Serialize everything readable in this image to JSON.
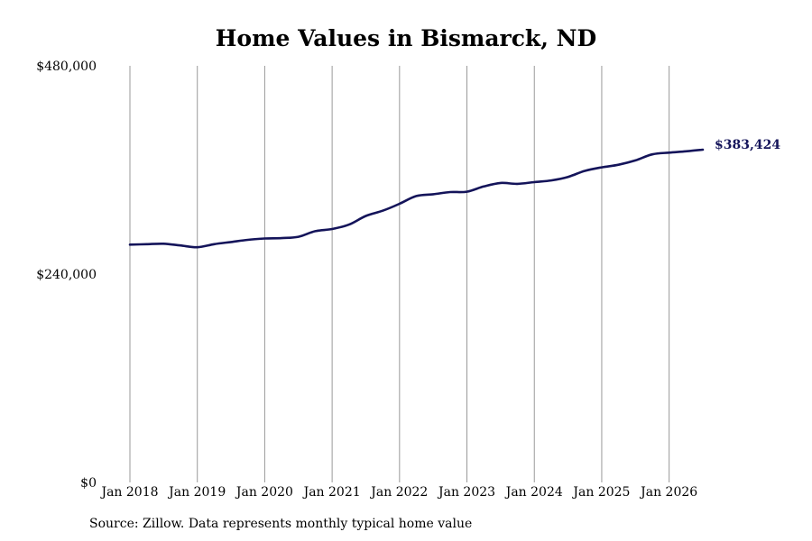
{
  "chart_data": {
    "type": "line",
    "title": "Home Values in Bismarck, ND",
    "source_note": "Source: Zillow. Data represents monthly typical home value",
    "xlabel": "",
    "ylabel": "",
    "ylim": [
      0,
      480000
    ],
    "y_ticks": [
      {
        "value": 0,
        "label": "$0"
      },
      {
        "value": 240000,
        "label": "$240,000"
      },
      {
        "value": 480000,
        "label": "$480,000"
      }
    ],
    "x_ticks": [
      {
        "value": 2018,
        "label": "Jan 2018"
      },
      {
        "value": 2019,
        "label": "Jan 2019"
      },
      {
        "value": 2020,
        "label": "Jan 2020"
      },
      {
        "value": 2021,
        "label": "Jan 2021"
      },
      {
        "value": 2022,
        "label": "Jan 2022"
      },
      {
        "value": 2023,
        "label": "Jan 2023"
      },
      {
        "value": 2024,
        "label": "Jan 2024"
      },
      {
        "value": 2025,
        "label": "Jan 2025"
      },
      {
        "value": 2026,
        "label": "Jan 2026"
      }
    ],
    "xlim": [
      2018,
      2026.5
    ],
    "grid": "vertical",
    "line_color": "#14145a",
    "grid_color": "#999999",
    "end_label": "$383,424",
    "series": [
      {
        "x": [
          2018.0,
          2018.25,
          2018.5,
          2018.75,
          2019.0,
          2019.25,
          2019.5,
          2019.75,
          2020.0,
          2020.25,
          2020.5,
          2020.75,
          2021.0,
          2021.25,
          2021.5,
          2021.75,
          2022.0,
          2022.25,
          2022.5,
          2022.75,
          2023.0,
          2023.25,
          2023.5,
          2023.75,
          2024.0,
          2024.25,
          2024.5,
          2024.75,
          2025.0,
          2025.25,
          2025.5,
          2025.75,
          2026.0,
          2026.25,
          2026.5
        ],
        "values": [
          274000,
          274500,
          275000,
          273000,
          271000,
          274500,
          277000,
          279500,
          281000,
          281500,
          283000,
          289500,
          292000,
          297000,
          307000,
          313000,
          321000,
          330000,
          332000,
          334500,
          335000,
          341000,
          345000,
          344000,
          346000,
          348000,
          352000,
          359000,
          363000,
          366000,
          371000,
          378000,
          380000,
          381500,
          383424
        ]
      }
    ]
  }
}
